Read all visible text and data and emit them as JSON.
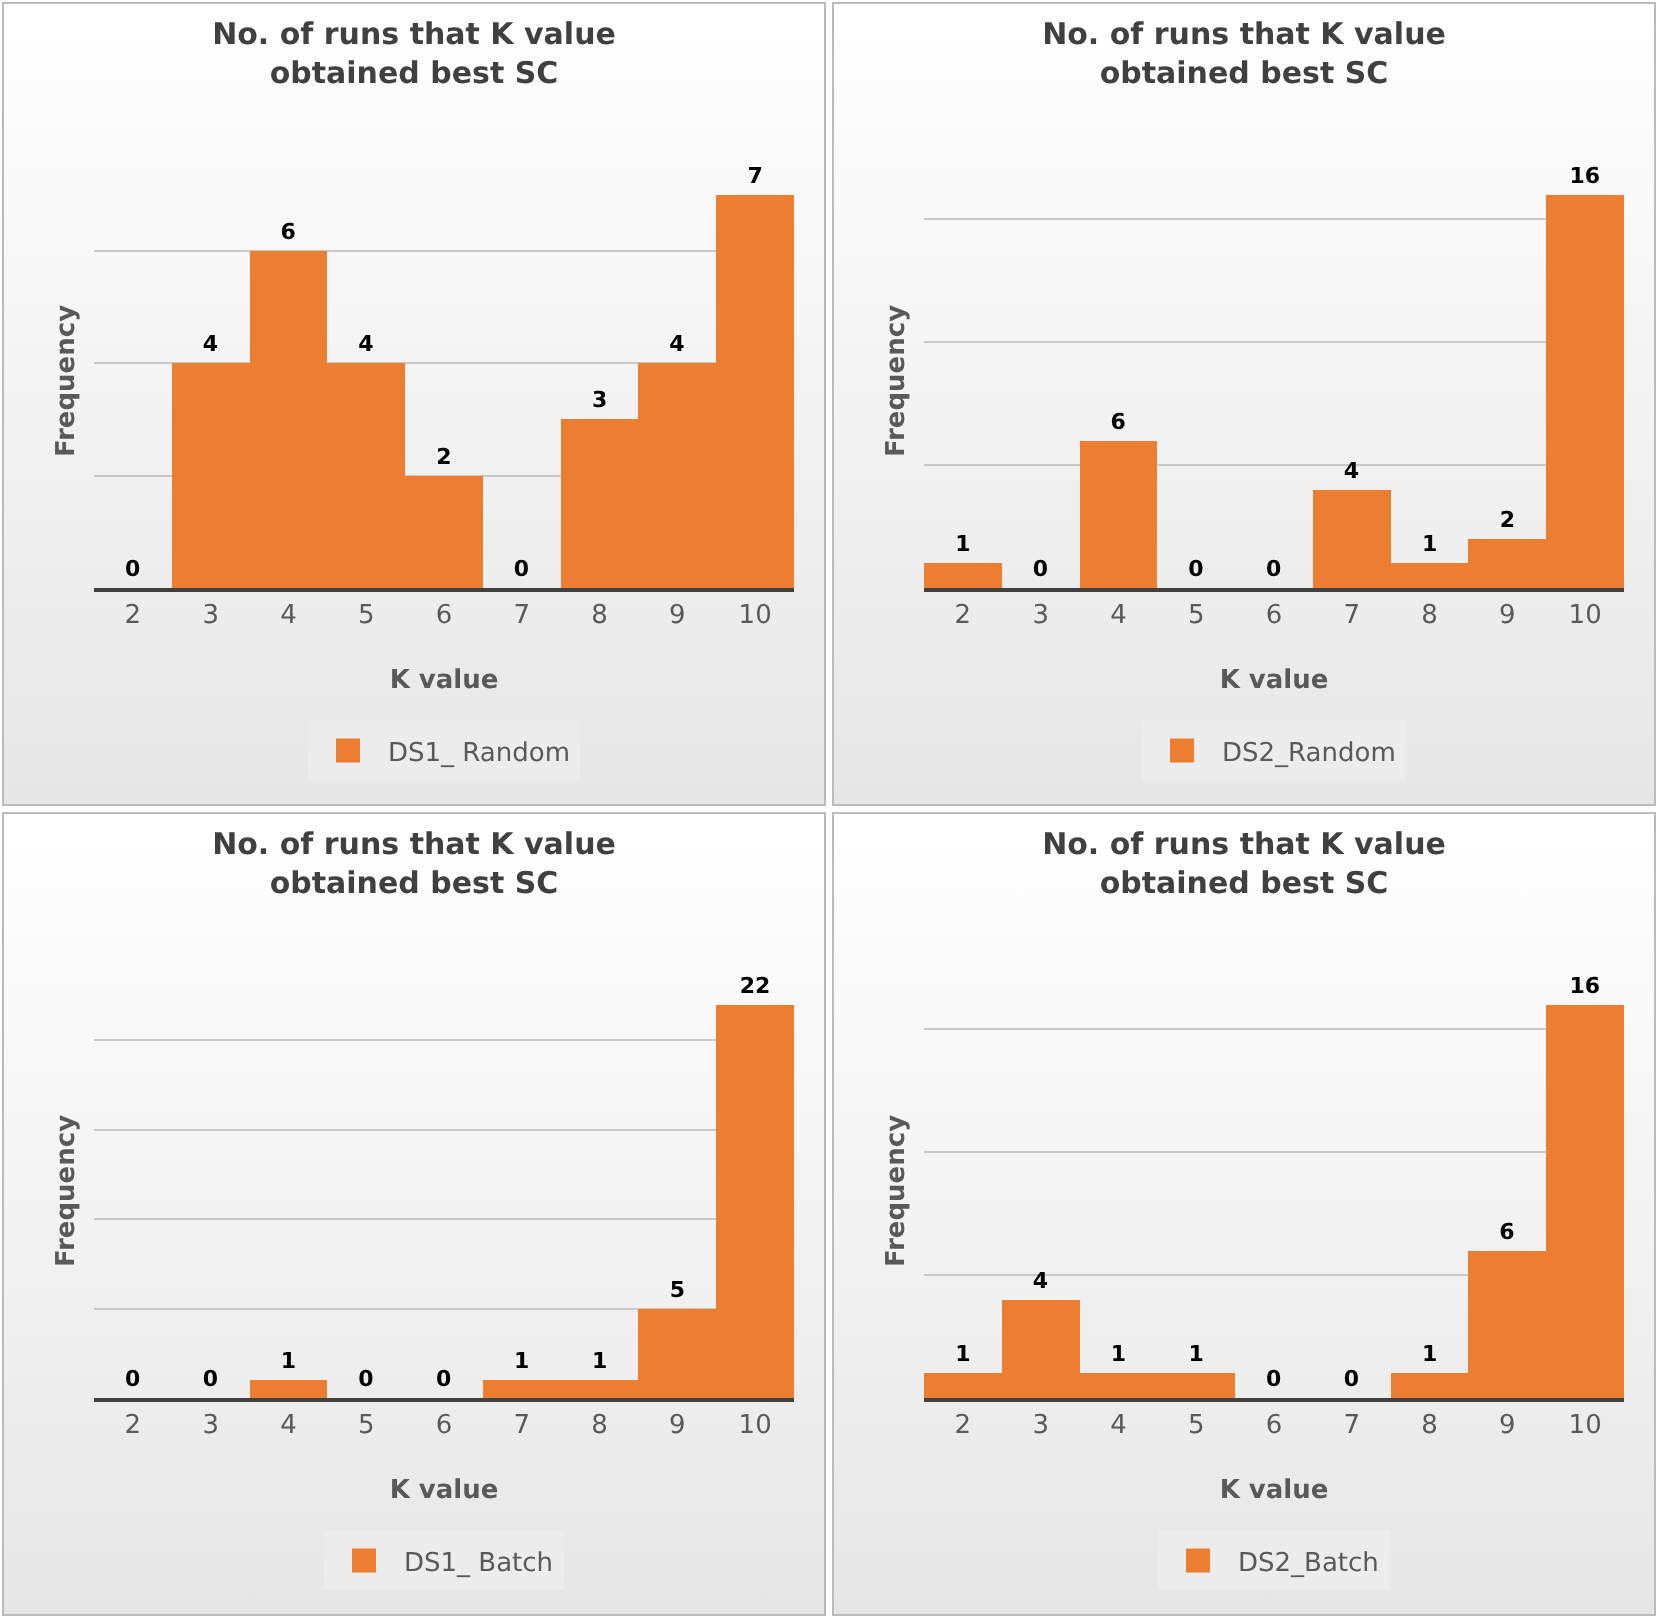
{
  "chart_data": [
    {
      "type": "bar",
      "title": "No. of runs that K value obtained best SC",
      "xlabel": "K value",
      "ylabel": "Frequency",
      "categories": [
        "2",
        "3",
        "4",
        "5",
        "6",
        "7",
        "8",
        "9",
        "10"
      ],
      "series": [
        {
          "name": "DS1_ Random",
          "color": "#ed7d31",
          "values": [
            0,
            4,
            6,
            4,
            2,
            0,
            3,
            4,
            7
          ]
        }
      ],
      "tick_labels": "x",
      "grid": "y",
      "legend": "bottom",
      "data_labels": true
    },
    {
      "type": "bar",
      "title": "No. of runs that K value obtained best SC",
      "xlabel": "K value",
      "ylabel": "Frequency",
      "categories": [
        "2",
        "3",
        "4",
        "5",
        "6",
        "7",
        "8",
        "9",
        "10"
      ],
      "series": [
        {
          "name": "DS2_Random",
          "color": "#ed7d31",
          "values": [
            1,
            0,
            6,
            0,
            0,
            4,
            1,
            2,
            16
          ]
        }
      ],
      "tick_labels": "x",
      "grid": "y",
      "legend": "bottom",
      "data_labels": true
    },
    {
      "type": "bar",
      "title": "No. of runs that K value obtained best SC",
      "xlabel": "K value",
      "ylabel": "Frequency",
      "categories": [
        "2",
        "3",
        "4",
        "5",
        "6",
        "7",
        "8",
        "9",
        "10"
      ],
      "series": [
        {
          "name": "DS1_ Batch",
          "color": "#ed7d31",
          "values": [
            0,
            0,
            1,
            0,
            0,
            1,
            1,
            5,
            22
          ]
        }
      ],
      "tick_labels": "x",
      "grid": "y",
      "legend": "bottom",
      "data_labels": true
    },
    {
      "type": "bar",
      "title": "No. of runs that K value obtained best SC",
      "xlabel": "K value",
      "ylabel": "Frequency",
      "categories": [
        "2",
        "3",
        "4",
        "5",
        "6",
        "7",
        "8",
        "9",
        "10"
      ],
      "series": [
        {
          "name": "DS2_Batch",
          "color": "#ed7d31",
          "values": [
            1,
            4,
            1,
            1,
            0,
            0,
            1,
            6,
            16
          ]
        }
      ],
      "tick_labels": "x",
      "grid": "y",
      "legend": "bottom",
      "data_labels": true
    }
  ]
}
